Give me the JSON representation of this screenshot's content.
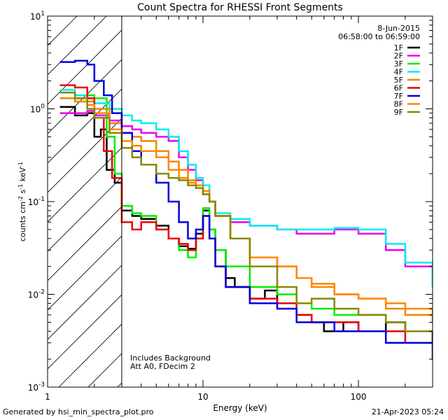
{
  "chart_data": {
    "type": "line",
    "title": "Count Spectra for RHESSI Front Segments",
    "date_label": "8-Jun-2015",
    "time_range_label": "06:58:00 to 06:59:00",
    "xlabel": "Energy (keV)",
    "ylabel_parts": [
      "counts cm",
      "-2",
      " s",
      "-1",
      " keV",
      "-1"
    ],
    "x_scale": "log",
    "y_scale": "log",
    "xlim": [
      1,
      300
    ],
    "ylim": [
      0.001,
      10
    ],
    "x_ticks": [
      {
        "value": 1,
        "label": "1"
      },
      {
        "value": 10,
        "label": "10"
      },
      {
        "value": 100,
        "label": "100"
      }
    ],
    "y_ticks": [
      {
        "value": 10,
        "base": "10",
        "exp": "1"
      },
      {
        "value": 1,
        "base": "10",
        "exp": "0"
      },
      {
        "value": 0.1,
        "base": "10",
        "exp": "-1"
      },
      {
        "value": 0.01,
        "base": "10",
        "exp": "-2"
      },
      {
        "value": 0.001,
        "base": "10",
        "exp": "-3"
      }
    ],
    "shaded_region": {
      "x_range": [
        1,
        3
      ],
      "style": "hatched"
    },
    "annotations": [
      "Includes Background",
      "Att A0, FDecim 2"
    ],
    "series": [
      {
        "name": "1F",
        "color": "#000000",
        "points": [
          [
            1.2,
            1.05
          ],
          [
            1.5,
            0.85
          ],
          [
            1.8,
            0.9
          ],
          [
            2.0,
            0.5
          ],
          [
            2.2,
            0.6
          ],
          [
            2.4,
            0.22
          ],
          [
            2.7,
            0.16
          ],
          [
            3.0,
            0.08
          ],
          [
            3.5,
            0.07
          ],
          [
            4.0,
            0.065
          ],
          [
            5.0,
            0.055
          ],
          [
            6.0,
            0.04
          ],
          [
            7.0,
            0.033
          ],
          [
            8.0,
            0.031
          ],
          [
            9.0,
            0.045
          ],
          [
            10.0,
            0.08
          ],
          [
            11.0,
            0.05
          ],
          [
            12.0,
            0.03
          ],
          [
            14.0,
            0.015
          ],
          [
            16.0,
            0.012
          ],
          [
            20.0,
            0.009
          ],
          [
            25.0,
            0.011
          ],
          [
            30.0,
            0.008
          ],
          [
            40.0,
            0.006
          ],
          [
            50.0,
            0.005
          ],
          [
            60.0,
            0.004
          ],
          [
            80.0,
            0.005
          ],
          [
            100.0,
            0.004
          ],
          [
            150.0,
            0.005
          ],
          [
            200.0,
            0.004
          ],
          [
            300.0,
            0.003
          ]
        ]
      },
      {
        "name": "2F",
        "color": "#ee00ee",
        "points": [
          [
            1.2,
            0.9
          ],
          [
            1.5,
            0.9
          ],
          [
            1.8,
            0.95
          ],
          [
            2.0,
            0.85
          ],
          [
            2.5,
            0.75
          ],
          [
            3.0,
            0.65
          ],
          [
            3.5,
            0.6
          ],
          [
            4.0,
            0.55
          ],
          [
            5.0,
            0.5
          ],
          [
            6.0,
            0.45
          ],
          [
            7.0,
            0.3
          ],
          [
            8.0,
            0.22
          ],
          [
            9.0,
            0.17
          ],
          [
            10.0,
            0.15
          ],
          [
            11.0,
            0.1
          ],
          [
            12.0,
            0.07
          ],
          [
            15.0,
            0.06
          ],
          [
            20.0,
            0.055
          ],
          [
            30.0,
            0.05
          ],
          [
            40.0,
            0.045
          ],
          [
            50.0,
            0.045
          ],
          [
            70.0,
            0.05
          ],
          [
            100.0,
            0.045
          ],
          [
            150.0,
            0.03
          ],
          [
            200.0,
            0.02
          ],
          [
            300.0,
            0.012
          ]
        ]
      },
      {
        "name": "3F",
        "color": "#00ee00",
        "points": [
          [
            1.2,
            1.3
          ],
          [
            1.5,
            1.2
          ],
          [
            1.8,
            1.4
          ],
          [
            2.0,
            1.3
          ],
          [
            2.4,
            0.5
          ],
          [
            2.7,
            0.2
          ],
          [
            3.0,
            0.09
          ],
          [
            3.5,
            0.075
          ],
          [
            4.0,
            0.07
          ],
          [
            5.0,
            0.05
          ],
          [
            6.0,
            0.04
          ],
          [
            7.0,
            0.03
          ],
          [
            8.0,
            0.025
          ],
          [
            9.0,
            0.04
          ],
          [
            10.0,
            0.085
          ],
          [
            11.0,
            0.05
          ],
          [
            12.0,
            0.03
          ],
          [
            14.0,
            0.02
          ],
          [
            20.0,
            0.012
          ],
          [
            30.0,
            0.01
          ],
          [
            40.0,
            0.008
          ],
          [
            50.0,
            0.007
          ],
          [
            70.0,
            0.006
          ],
          [
            100.0,
            0.006
          ],
          [
            150.0,
            0.005
          ],
          [
            200.0,
            0.004
          ],
          [
            300.0,
            0.004
          ]
        ]
      },
      {
        "name": "4F",
        "color": "#00eeee",
        "points": [
          [
            1.2,
            1.6
          ],
          [
            1.5,
            1.4
          ],
          [
            1.8,
            1.2
          ],
          [
            2.0,
            1.15
          ],
          [
            2.5,
            1.0
          ],
          [
            3.0,
            0.85
          ],
          [
            3.5,
            0.75
          ],
          [
            4.0,
            0.7
          ],
          [
            5.0,
            0.6
          ],
          [
            6.0,
            0.5
          ],
          [
            7.0,
            0.35
          ],
          [
            8.0,
            0.25
          ],
          [
            9.0,
            0.18
          ],
          [
            10.0,
            0.15
          ],
          [
            11.0,
            0.1
          ],
          [
            12.0,
            0.075
          ],
          [
            15.0,
            0.065
          ],
          [
            20.0,
            0.055
          ],
          [
            30.0,
            0.05
          ],
          [
            40.0,
            0.05
          ],
          [
            50.0,
            0.05
          ],
          [
            70.0,
            0.052
          ],
          [
            100.0,
            0.05
          ],
          [
            150.0,
            0.035
          ],
          [
            200.0,
            0.022
          ],
          [
            300.0,
            0.012
          ]
        ]
      },
      {
        "name": "5F",
        "color": "#ee8800",
        "points": [
          [
            1.2,
            1.5
          ],
          [
            1.5,
            1.3
          ],
          [
            1.8,
            1.2
          ],
          [
            2.0,
            1.0
          ],
          [
            2.5,
            0.7
          ],
          [
            3.0,
            0.55
          ],
          [
            3.5,
            0.5
          ],
          [
            4.0,
            0.45
          ],
          [
            5.0,
            0.35
          ],
          [
            6.0,
            0.27
          ],
          [
            7.0,
            0.22
          ],
          [
            8.0,
            0.17
          ],
          [
            9.0,
            0.15
          ],
          [
            10.0,
            0.12
          ],
          [
            11.0,
            0.1
          ],
          [
            12.0,
            0.07
          ],
          [
            15.0,
            0.04
          ],
          [
            20.0,
            0.025
          ],
          [
            30.0,
            0.02
          ],
          [
            40.0,
            0.015
          ],
          [
            50.0,
            0.013
          ],
          [
            70.0,
            0.01
          ],
          [
            100.0,
            0.009
          ],
          [
            150.0,
            0.007
          ],
          [
            200.0,
            0.006
          ],
          [
            300.0,
            0.005
          ]
        ]
      },
      {
        "name": "6F",
        "color": "#ee0000",
        "points": [
          [
            1.2,
            1.8
          ],
          [
            1.5,
            1.7
          ],
          [
            1.8,
            1.3
          ],
          [
            2.0,
            0.8
          ],
          [
            2.3,
            0.35
          ],
          [
            2.6,
            0.18
          ],
          [
            3.0,
            0.06
          ],
          [
            3.5,
            0.05
          ],
          [
            4.0,
            0.06
          ],
          [
            5.0,
            0.05
          ],
          [
            6.0,
            0.04
          ],
          [
            7.0,
            0.035
          ],
          [
            8.0,
            0.03
          ],
          [
            9.0,
            0.04
          ],
          [
            10.0,
            0.07
          ],
          [
            11.0,
            0.04
          ],
          [
            12.0,
            0.02
          ],
          [
            14.0,
            0.012
          ],
          [
            20.0,
            0.009
          ],
          [
            30.0,
            0.008
          ],
          [
            40.0,
            0.006
          ],
          [
            50.0,
            0.005
          ],
          [
            70.0,
            0.005
          ],
          [
            100.0,
            0.004
          ],
          [
            150.0,
            0.004
          ],
          [
            200.0,
            0.003
          ],
          [
            300.0,
            0.003
          ]
        ]
      },
      {
        "name": "7F",
        "color": "#0000dd",
        "points": [
          [
            1.2,
            3.2
          ],
          [
            1.5,
            3.3
          ],
          [
            1.8,
            3.0
          ],
          [
            2.0,
            2.0
          ],
          [
            2.3,
            1.4
          ],
          [
            2.6,
            0.9
          ],
          [
            3.0,
            0.55
          ],
          [
            3.5,
            0.35
          ],
          [
            4.0,
            0.25
          ],
          [
            5.0,
            0.16
          ],
          [
            6.0,
            0.1
          ],
          [
            7.0,
            0.06
          ],
          [
            8.0,
            0.04
          ],
          [
            9.0,
            0.05
          ],
          [
            10.0,
            0.07
          ],
          [
            11.0,
            0.04
          ],
          [
            12.0,
            0.02
          ],
          [
            14.0,
            0.012
          ],
          [
            20.0,
            0.008
          ],
          [
            30.0,
            0.007
          ],
          [
            40.0,
            0.005
          ],
          [
            50.0,
            0.005
          ],
          [
            70.0,
            0.004
          ],
          [
            100.0,
            0.004
          ],
          [
            150.0,
            0.003
          ],
          [
            200.0,
            0.003
          ],
          [
            300.0,
            0.002
          ]
        ]
      },
      {
        "name": "8F",
        "color": "#ff8800",
        "points": [
          [
            1.2,
            1.3
          ],
          [
            1.5,
            1.2
          ],
          [
            1.8,
            1.1
          ],
          [
            2.0,
            0.9
          ],
          [
            2.5,
            0.6
          ],
          [
            3.0,
            0.45
          ],
          [
            3.5,
            0.4
          ],
          [
            4.0,
            0.35
          ],
          [
            5.0,
            0.3
          ],
          [
            6.0,
            0.22
          ],
          [
            7.0,
            0.18
          ],
          [
            8.0,
            0.16
          ],
          [
            9.0,
            0.15
          ],
          [
            10.0,
            0.13
          ],
          [
            11.0,
            0.1
          ],
          [
            12.0,
            0.07
          ],
          [
            15.0,
            0.04
          ],
          [
            20.0,
            0.025
          ],
          [
            30.0,
            0.02
          ],
          [
            40.0,
            0.015
          ],
          [
            50.0,
            0.012
          ],
          [
            70.0,
            0.01
          ],
          [
            100.0,
            0.009
          ],
          [
            150.0,
            0.008
          ],
          [
            200.0,
            0.007
          ],
          [
            300.0,
            0.006
          ]
        ]
      },
      {
        "name": "9F",
        "color": "#888800",
        "points": [
          [
            1.2,
            1.5
          ],
          [
            1.5,
            1.3
          ],
          [
            1.8,
            1.0
          ],
          [
            2.0,
            0.8
          ],
          [
            2.5,
            0.55
          ],
          [
            3.0,
            0.38
          ],
          [
            3.5,
            0.3
          ],
          [
            4.0,
            0.25
          ],
          [
            5.0,
            0.2
          ],
          [
            6.0,
            0.18
          ],
          [
            7.0,
            0.17
          ],
          [
            8.0,
            0.15
          ],
          [
            9.0,
            0.14
          ],
          [
            10.0,
            0.12
          ],
          [
            11.0,
            0.1
          ],
          [
            12.0,
            0.07
          ],
          [
            15.0,
            0.04
          ],
          [
            20.0,
            0.02
          ],
          [
            30.0,
            0.012
          ],
          [
            40.0,
            0.008
          ],
          [
            50.0,
            0.009
          ],
          [
            70.0,
            0.007
          ],
          [
            100.0,
            0.006
          ],
          [
            150.0,
            0.005
          ],
          [
            200.0,
            0.004
          ],
          [
            300.0,
            0.004
          ]
        ]
      }
    ]
  },
  "footer": {
    "generated_by": "Generated by hsi_min_spectra_plot.pro",
    "timestamp": "21-Apr-2023 05:24"
  }
}
